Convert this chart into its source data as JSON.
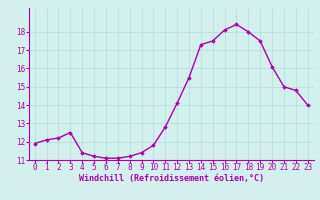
{
  "x": [
    0,
    1,
    2,
    3,
    4,
    5,
    6,
    7,
    8,
    9,
    10,
    11,
    12,
    13,
    14,
    15,
    16,
    17,
    18,
    19,
    20,
    21,
    22,
    23
  ],
  "y": [
    11.9,
    12.1,
    12.2,
    12.5,
    11.4,
    11.2,
    11.1,
    11.1,
    11.2,
    11.4,
    11.8,
    12.8,
    14.1,
    15.5,
    17.3,
    17.5,
    18.1,
    18.4,
    18.0,
    17.5,
    16.1,
    15.0,
    14.8,
    14.0
  ],
  "line_color": "#aa00aa",
  "marker": "D",
  "marker_size": 1.8,
  "bg_color": "#d4f0ee",
  "grid_color": "#b0dcd8",
  "xlabel": "Windchill (Refroidissement éolien,°C)",
  "xlabel_color": "#aa00aa",
  "tick_color": "#aa00aa",
  "ylim": [
    11,
    19
  ],
  "xlim": [
    -0.5,
    23.5
  ],
  "yticks": [
    11,
    12,
    13,
    14,
    15,
    16,
    17,
    18
  ],
  "xticks": [
    0,
    1,
    2,
    3,
    4,
    5,
    6,
    7,
    8,
    9,
    10,
    11,
    12,
    13,
    14,
    15,
    16,
    17,
    18,
    19,
    20,
    21,
    22,
    23
  ],
  "linewidth": 1.0,
  "tick_fontsize": 5.5,
  "xlabel_fontsize": 6.0
}
